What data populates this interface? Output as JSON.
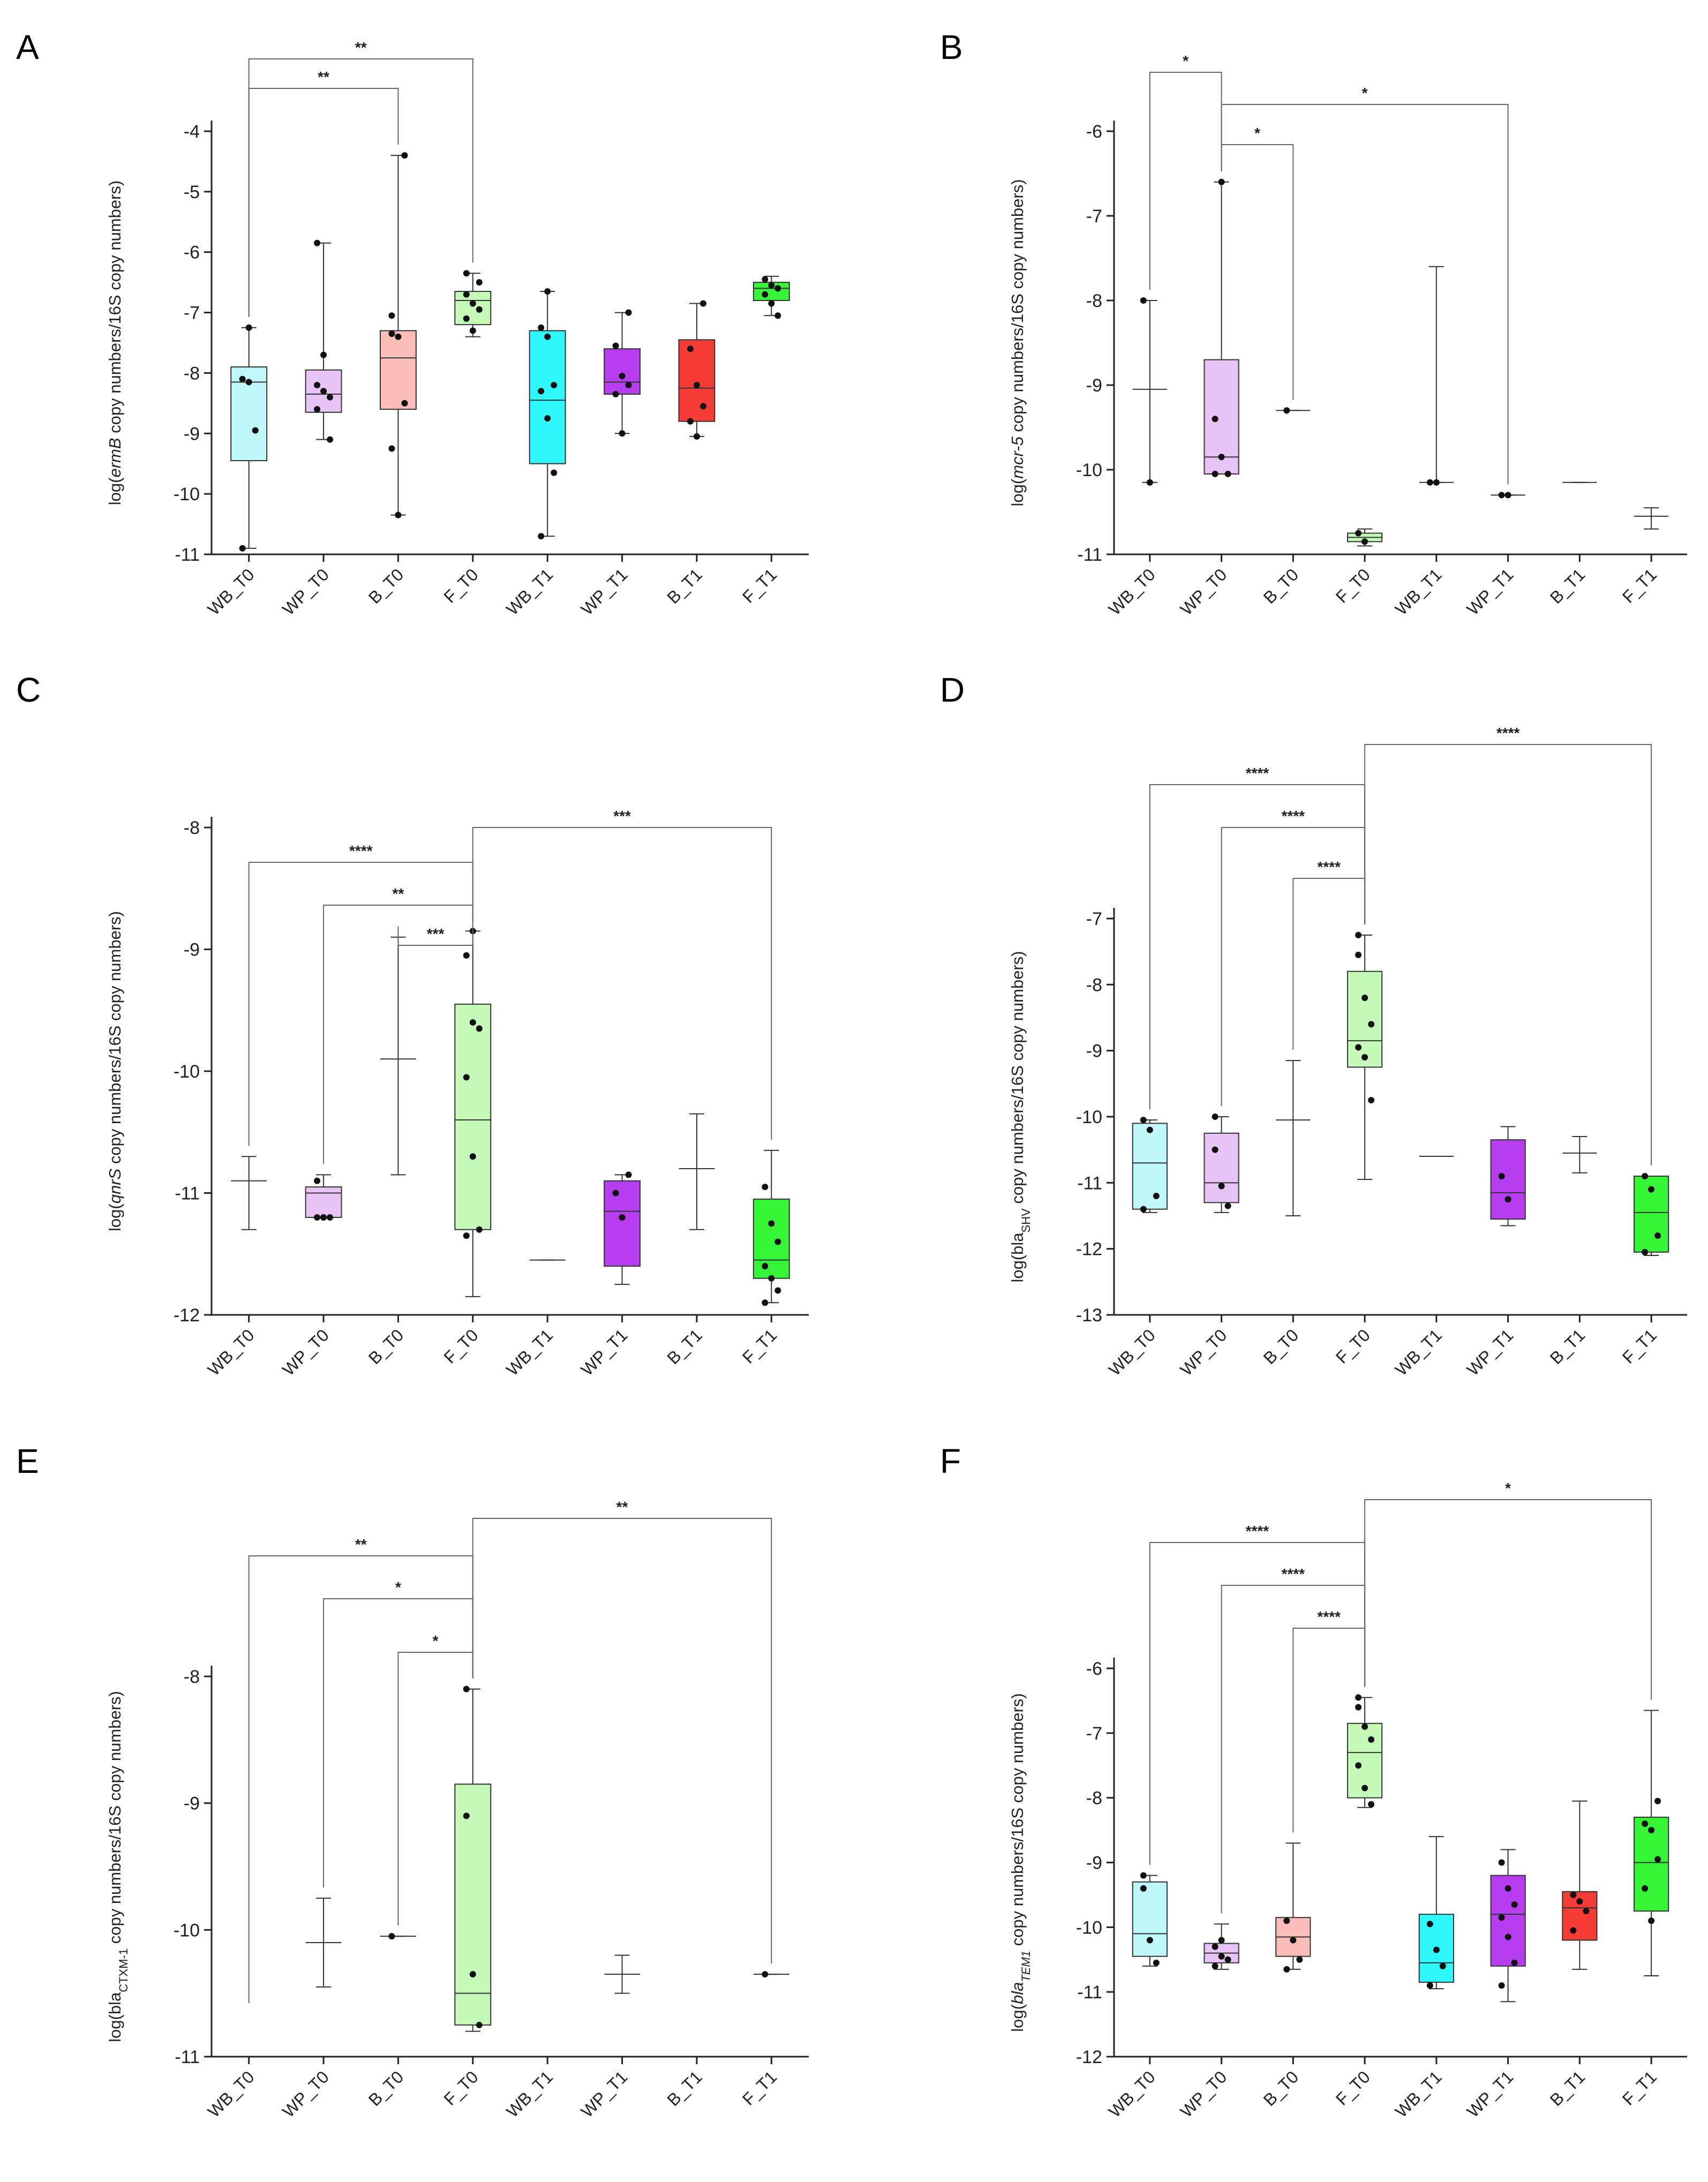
{
  "chart_data": [
    {
      "type": "box",
      "panel": "A",
      "ylabel": [
        "log(",
        "ermB",
        " copy numbers/16S copy numbers)"
      ],
      "ylim": [
        -11,
        -4
      ],
      "yticks": [
        -4,
        -5,
        -6,
        -7,
        -8,
        -9,
        -10,
        -11
      ],
      "categories": [
        "WB_T0",
        "WP_T0",
        "B_T0",
        "F_T0",
        "WB_T1",
        "WP_T1",
        "B_T1",
        "F_T1"
      ],
      "boxes": [
        {
          "min": -10.9,
          "q1": -9.45,
          "median": -8.15,
          "q3": -7.9,
          "max": -7.25,
          "points": [
            -8.1,
            -8.15,
            -8.95,
            -10.9,
            -7.25
          ]
        },
        {
          "min": -9.1,
          "q1": -8.65,
          "median": -8.35,
          "q3": -7.95,
          "max": -5.85,
          "points": [
            -8.2,
            -8.3,
            -8.4,
            -8.6,
            -7.7,
            -9.1,
            -5.85
          ]
        },
        {
          "min": -10.35,
          "q1": -8.6,
          "median": -7.75,
          "q3": -7.3,
          "max": -4.4,
          "points": [
            -7.35,
            -7.4,
            -8.5,
            -9.25,
            -10.35,
            -4.4,
            -7.05
          ]
        },
        {
          "min": -7.4,
          "q1": -7.2,
          "median": -6.8,
          "q3": -6.65,
          "max": -6.35,
          "points": [
            -6.7,
            -6.85,
            -6.95,
            -7.1,
            -7.3,
            -6.5,
            -6.35
          ]
        },
        {
          "min": -10.7,
          "q1": -9.5,
          "median": -8.45,
          "q3": -7.3,
          "max": -6.65,
          "points": [
            -7.25,
            -7.4,
            -8.2,
            -8.3,
            -8.75,
            -9.65,
            -10.7,
            -6.65
          ]
        },
        {
          "min": -9.0,
          "q1": -8.35,
          "median": -8.15,
          "q3": -7.6,
          "max": -7.0,
          "points": [
            -7.55,
            -8.05,
            -8.2,
            -8.35,
            -9.0,
            -7.0
          ]
        },
        {
          "min": -9.05,
          "q1": -8.8,
          "median": -8.25,
          "q3": -7.45,
          "max": -6.85,
          "points": [
            -7.6,
            -8.2,
            -8.55,
            -8.8,
            -9.05,
            -6.85
          ]
        },
        {
          "min": -7.05,
          "q1": -6.8,
          "median": -6.6,
          "q3": -6.5,
          "max": -6.4,
          "points": [
            -6.45,
            -6.55,
            -6.6,
            -6.7,
            -6.85,
            -7.05
          ]
        }
      ],
      "significance": [
        {
          "from": 0,
          "to": 3,
          "label": "**",
          "level": 0
        },
        {
          "from": 0,
          "to": 2,
          "label": "**",
          "level": 1
        }
      ]
    },
    {
      "type": "box",
      "panel": "B",
      "ylabel": [
        "log(",
        "mcr-5",
        " copy numbers/16S copy numbers)"
      ],
      "ylim": [
        -11,
        -6
      ],
      "yticks": [
        -6,
        -7,
        -8,
        -9,
        -10,
        -11
      ],
      "categories": [
        "WB_T0",
        "WP_T0",
        "B_T0",
        "F_T0",
        "WB_T1",
        "WP_T1",
        "B_T1",
        "F_T1"
      ],
      "boxes": [
        {
          "min": -10.15,
          "q1": -9.05,
          "median": -9.05,
          "q3": -9.05,
          "max": -8.0,
          "points": [
            -8.0,
            -10.15
          ],
          "nobox": true
        },
        {
          "min": -10.05,
          "q1": -10.05,
          "median": -9.85,
          "q3": -8.7,
          "max": -6.6,
          "points": [
            -9.4,
            -9.85,
            -10.05,
            -10.05,
            -6.6
          ]
        },
        {
          "min": -9.3,
          "q1": -9.3,
          "median": -9.3,
          "q3": -9.3,
          "max": -9.3,
          "points": [
            -9.3
          ],
          "nobox": true
        },
        {
          "min": -10.9,
          "q1": -10.85,
          "median": -10.8,
          "q3": -10.75,
          "max": -10.7,
          "points": [
            -10.75,
            -10.85
          ]
        },
        {
          "min": -10.15,
          "q1": -10.15,
          "median": -10.15,
          "q3": -10.15,
          "max": -7.6,
          "points": [
            -10.15,
            -10.15
          ],
          "nobox": true
        },
        {
          "min": -10.3,
          "q1": -10.3,
          "median": -10.3,
          "q3": -10.3,
          "max": -10.3,
          "points": [
            -10.3,
            -10.3
          ],
          "nobox": true
        },
        {
          "min": -10.15,
          "q1": -10.15,
          "median": -10.15,
          "q3": -10.15,
          "max": -10.15,
          "points": [],
          "nobox": true
        },
        {
          "min": -10.7,
          "q1": -10.55,
          "median": -10.55,
          "q3": -10.55,
          "max": -10.45,
          "points": [],
          "nobox": true
        }
      ],
      "significance": [
        {
          "from": 0,
          "to": 1,
          "label": "*",
          "level": 0
        },
        {
          "from": 1,
          "to": 5,
          "label": "*",
          "level": 1
        },
        {
          "from": 1,
          "to": 2,
          "label": "*",
          "level": 2
        }
      ]
    },
    {
      "type": "box",
      "panel": "C",
      "ylabel": [
        "log(",
        "qnrS",
        " copy numbers/16S copy numbers)"
      ],
      "ylim": [
        -12,
        -8
      ],
      "yticks": [
        -8,
        -9,
        -10,
        -11,
        -12
      ],
      "categories": [
        "WB_T0",
        "WP_T0",
        "B_T0",
        "F_T0",
        "WB_T1",
        "WP_T1",
        "B_T1",
        "F_T1"
      ],
      "boxes": [
        {
          "min": -11.3,
          "q1": -10.9,
          "median": -10.9,
          "q3": -10.9,
          "max": -10.7,
          "points": [],
          "nobox": true
        },
        {
          "min": -11.2,
          "q1": -11.2,
          "median": -11.0,
          "q3": -10.95,
          "max": -10.85,
          "points": [
            -10.9,
            -11.2,
            -11.2,
            -11.2,
            -11.2
          ]
        },
        {
          "min": -10.85,
          "q1": -9.9,
          "median": -9.9,
          "q3": -9.9,
          "max": -8.9,
          "points": [],
          "nobox": true
        },
        {
          "min": -11.85,
          "q1": -11.3,
          "median": -10.4,
          "q3": -9.45,
          "max": -8.85,
          "points": [
            -9.05,
            -9.6,
            -9.65,
            -10.05,
            -10.7,
            -11.3,
            -11.35,
            -8.85
          ]
        },
        {
          "min": -11.55,
          "q1": -11.55,
          "median": -11.55,
          "q3": -11.55,
          "max": -11.55,
          "points": [],
          "nobox": true
        },
        {
          "min": -11.75,
          "q1": -11.6,
          "median": -11.15,
          "q3": -10.9,
          "max": -10.85,
          "points": [
            -11.0,
            -11.2,
            -10.85
          ]
        },
        {
          "min": -11.3,
          "q1": -10.8,
          "median": -10.8,
          "q3": -10.8,
          "max": -10.35,
          "points": [],
          "nobox": true
        },
        {
          "min": -11.9,
          "q1": -11.7,
          "median": -11.55,
          "q3": -11.05,
          "max": -10.65,
          "points": [
            -10.95,
            -11.25,
            -11.4,
            -11.6,
            -11.7,
            -11.8,
            -11.9
          ]
        }
      ],
      "significance": [
        {
          "from": 3,
          "to": 7,
          "label": "***",
          "level": 0
        },
        {
          "from": 0,
          "to": 3,
          "label": "****",
          "level": 1
        },
        {
          "from": 1,
          "to": 3,
          "label": "**",
          "level": 2
        },
        {
          "from": 2,
          "to": 3,
          "label": "***",
          "level": 3
        }
      ]
    },
    {
      "type": "box",
      "panel": "D",
      "ylabel": [
        "log(bla",
        "SHV",
        " copy numbers/16S copy numbers)"
      ],
      "ylim": [
        -13,
        -7
      ],
      "yticks": [
        -7,
        -8,
        -9,
        -10,
        -11,
        -12,
        -13
      ],
      "categories": [
        "WB_T0",
        "WP_T0",
        "B_T0",
        "F_T0",
        "WB_T1",
        "WP_T1",
        "B_T1",
        "F_T1"
      ],
      "boxes": [
        {
          "min": -11.45,
          "q1": -11.4,
          "median": -10.7,
          "q3": -10.1,
          "max": -10.05,
          "points": [
            -10.05,
            -10.2,
            -11.2,
            -11.4
          ]
        },
        {
          "min": -11.45,
          "q1": -11.3,
          "median": -11.0,
          "q3": -10.25,
          "max": -10.0,
          "points": [
            -10.5,
            -11.05,
            -11.35,
            -10.0
          ]
        },
        {
          "min": -11.5,
          "q1": -10.05,
          "median": -10.05,
          "q3": -10.05,
          "max": -9.15,
          "points": [],
          "nobox": true
        },
        {
          "min": -10.95,
          "q1": -9.25,
          "median": -8.85,
          "q3": -7.8,
          "max": -7.25,
          "points": [
            -7.55,
            -8.2,
            -8.6,
            -8.95,
            -9.1,
            -9.75,
            -7.25
          ]
        },
        {
          "min": -10.6,
          "q1": -10.6,
          "median": -10.6,
          "q3": -10.6,
          "max": -10.6,
          "points": [],
          "nobox": true
        },
        {
          "min": -11.65,
          "q1": -11.55,
          "median": -11.15,
          "q3": -10.35,
          "max": -10.15,
          "points": [
            -10.9,
            -11.25
          ]
        },
        {
          "min": -10.85,
          "q1": -10.55,
          "median": -10.55,
          "q3": -10.55,
          "max": -10.3,
          "points": [],
          "nobox": true
        },
        {
          "min": -12.1,
          "q1": -12.05,
          "median": -11.45,
          "q3": -10.9,
          "max": -10.9,
          "points": [
            -10.9,
            -11.1,
            -11.8,
            -12.05
          ]
        }
      ],
      "significance": [
        {
          "from": 3,
          "to": 7,
          "label": "****",
          "level": 0
        },
        {
          "from": 0,
          "to": 3,
          "label": "****",
          "level": 1
        },
        {
          "from": 1,
          "to": 3,
          "label": "****",
          "level": 2
        },
        {
          "from": 2,
          "to": 3,
          "label": "****",
          "level": 3
        }
      ]
    },
    {
      "type": "box",
      "panel": "E",
      "ylabel": [
        "log(bla",
        "CTXM-1",
        " copy numbers/16S copy numbers)"
      ],
      "ylim": [
        -11,
        -8
      ],
      "yticks": [
        -8,
        -9,
        -10,
        -11
      ],
      "categories": [
        "WB_T0",
        "WP_T0",
        "B_T0",
        "F_T0",
        "WB_T1",
        "WP_T1",
        "B_T1",
        "F_T1"
      ],
      "boxes": [
        {
          "empty": true
        },
        {
          "min": -10.45,
          "q1": -10.1,
          "median": -10.1,
          "q3": -10.1,
          "max": -9.75,
          "points": [],
          "nobox": true
        },
        {
          "min": -10.05,
          "q1": -10.05,
          "median": -10.05,
          "q3": -10.05,
          "max": -10.05,
          "points": [
            -10.05
          ],
          "nobox": true
        },
        {
          "min": -10.8,
          "q1": -10.75,
          "median": -10.5,
          "q3": -8.85,
          "max": -8.1,
          "points": [
            -9.1,
            -10.35,
            -10.75,
            -8.1
          ]
        },
        {
          "empty": true
        },
        {
          "min": -10.5,
          "q1": -10.35,
          "median": -10.35,
          "q3": -10.35,
          "max": -10.2,
          "points": [],
          "nobox": true
        },
        {
          "empty": true
        },
        {
          "min": -10.35,
          "q1": -10.35,
          "median": -10.35,
          "q3": -10.35,
          "max": -10.35,
          "points": [
            -10.35
          ],
          "nobox": true
        }
      ],
      "significance": [
        {
          "from": 3,
          "to": 7,
          "label": "**",
          "level": 0
        },
        {
          "from": 0,
          "to": 3,
          "label": "**",
          "level": 1
        },
        {
          "from": 1,
          "to": 3,
          "label": "*",
          "level": 2
        },
        {
          "from": 2,
          "to": 3,
          "label": "*",
          "level": 3
        }
      ]
    },
    {
      "type": "box",
      "panel": "F",
      "ylabel": [
        "log(",
        "bla",
        "TEM1",
        " copy numbers/16S copy numbers)"
      ],
      "ylim": [
        -12,
        -6
      ],
      "yticks": [
        -6,
        -7,
        -8,
        -9,
        -10,
        -11,
        -12
      ],
      "categories": [
        "WB_T0",
        "WP_T0",
        "B_T0",
        "F_T0",
        "WB_T1",
        "WP_T1",
        "B_T1",
        "F_T1"
      ],
      "boxes": [
        {
          "min": -10.6,
          "q1": -10.45,
          "median": -10.1,
          "q3": -9.3,
          "max": -9.2,
          "points": [
            -9.4,
            -10.2,
            -10.55,
            -9.2
          ]
        },
        {
          "min": -10.65,
          "q1": -10.55,
          "median": -10.4,
          "q3": -10.25,
          "max": -9.95,
          "points": [
            -10.3,
            -10.45,
            -10.5,
            -10.6,
            -10.2
          ]
        },
        {
          "min": -10.65,
          "q1": -10.45,
          "median": -10.15,
          "q3": -9.85,
          "max": -8.7,
          "points": [
            -9.9,
            -10.2,
            -10.5,
            -10.65
          ]
        },
        {
          "min": -8.15,
          "q1": -8.0,
          "median": -7.3,
          "q3": -6.85,
          "max": -6.45,
          "points": [
            -6.6,
            -6.9,
            -7.1,
            -7.5,
            -7.85,
            -8.1,
            -6.45
          ]
        },
        {
          "min": -10.95,
          "q1": -10.85,
          "median": -10.55,
          "q3": -9.8,
          "max": -8.6,
          "points": [
            -9.95,
            -10.35,
            -10.6,
            -10.9
          ]
        },
        {
          "min": -11.15,
          "q1": -10.6,
          "median": -9.8,
          "q3": -9.2,
          "max": -8.8,
          "points": [
            -9.0,
            -9.4,
            -9.65,
            -9.85,
            -10.15,
            -10.55,
            -10.9
          ]
        },
        {
          "min": -10.65,
          "q1": -10.2,
          "median": -9.7,
          "q3": -9.45,
          "max": -8.05,
          "points": [
            -9.5,
            -9.6,
            -9.75,
            -10.05
          ]
        },
        {
          "min": -10.75,
          "q1": -9.75,
          "median": -9.0,
          "q3": -8.3,
          "max": -6.65,
          "points": [
            -8.4,
            -8.5,
            -8.95,
            -9.4,
            -9.9,
            -8.05
          ]
        }
      ],
      "significance": [
        {
          "from": 3,
          "to": 7,
          "label": "*",
          "level": 0
        },
        {
          "from": 0,
          "to": 3,
          "label": "****",
          "level": 1
        },
        {
          "from": 1,
          "to": 3,
          "label": "****",
          "level": 2
        },
        {
          "from": 2,
          "to": 3,
          "label": "****",
          "level": 3
        }
      ]
    }
  ],
  "colors": {
    "WB_T0": "#bff8fb",
    "WP_T0": "#e8c3f5",
    "B_T0": "#fbbdb8",
    "F_T0": "#c4f9b8",
    "WB_T1": "#2ef8fb",
    "WP_T1": "#b63ef0",
    "B_T1": "#f43b36",
    "F_T1": "#36f436"
  }
}
